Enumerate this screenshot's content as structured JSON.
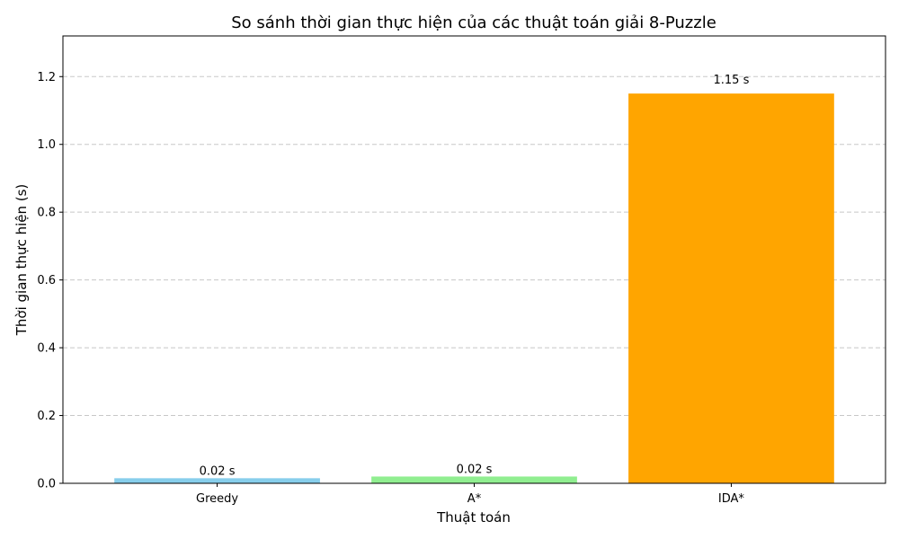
{
  "chart_data": {
    "type": "bar",
    "title": "So sánh thời gian thực hiện của các thuật toán giải 8-Puzzle",
    "xlabel": "Thuật toán",
    "ylabel": "Thời gian thực hiện (s)",
    "categories": [
      "Greedy",
      "A*",
      "IDA*"
    ],
    "values": [
      0.015,
      0.02,
      1.15
    ],
    "data_labels": [
      "0.02 s",
      "0.02 s",
      "1.15 s"
    ],
    "colors": [
      "#87ceeb",
      "#90ee90",
      "#ffa500"
    ],
    "ylim": [
      0,
      1.32
    ],
    "yticks": [
      0.0,
      0.2,
      0.4,
      0.6,
      0.8,
      1.0,
      1.2
    ],
    "ytick_labels": [
      "0.0",
      "0.2",
      "0.4",
      "0.6",
      "0.8",
      "1.0",
      "1.2"
    ],
    "grid": "y-dashed",
    "legend": "none"
  }
}
